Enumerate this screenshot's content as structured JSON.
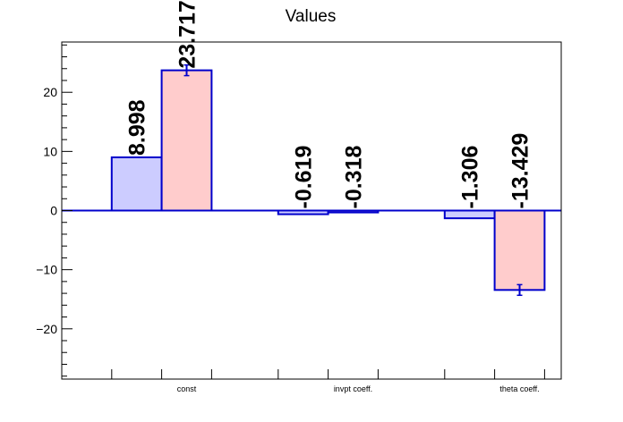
{
  "chart_data": {
    "type": "bar",
    "title": "Values",
    "categories": [
      "const",
      "invpt coeff.",
      "theta coeff."
    ],
    "series": [
      {
        "values": [
          8.998,
          -0.619,
          -1.306
        ],
        "labels": [
          "8.998",
          "-0.619",
          "-1.306"
        ],
        "errors": [
          0,
          0,
          0
        ],
        "fill": "#ccccff",
        "stroke": "#0000cc"
      },
      {
        "values": [
          23.717,
          -0.318,
          -13.429
        ],
        "labels": [
          "23.717",
          "-0.318",
          "-13.429"
        ],
        "errors": [
          0.9,
          0,
          0.9
        ],
        "fill": "#ffcccc",
        "stroke": "#0000cc"
      }
    ],
    "ylim": [
      -28.5,
      28.5
    ],
    "yticks": [
      -20,
      -10,
      0,
      10,
      20
    ],
    "ytick_labels": [
      "−20",
      "−10",
      "0",
      "10",
      "20"
    ],
    "xlabel": "",
    "ylabel": "",
    "grid": false,
    "legend": "none"
  }
}
